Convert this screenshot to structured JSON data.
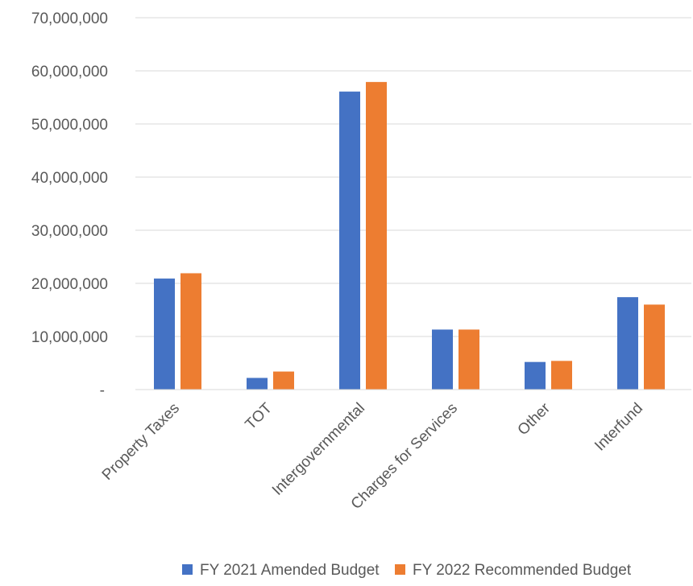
{
  "chart_data": {
    "type": "bar",
    "categories": [
      "Property Taxes",
      "TOT",
      "Intergovernmental",
      "Charges for Services",
      "Other",
      "Interfund"
    ],
    "series": [
      {
        "name": "FY 2021 Amended Budget",
        "color": "#4472C4",
        "values": [
          20900000,
          2200000,
          56100000,
          11300000,
          5200000,
          17400000
        ]
      },
      {
        "name": "FY 2022 Recommended Budget",
        "color": "#ED7D31",
        "values": [
          21900000,
          3400000,
          57900000,
          11300000,
          5400000,
          16000000
        ]
      }
    ],
    "yticks": [
      {
        "value": 0,
        "label": "-"
      },
      {
        "value": 10000000,
        "label": "10,000,000"
      },
      {
        "value": 20000000,
        "label": "20,000,000"
      },
      {
        "value": 30000000,
        "label": "30,000,000"
      },
      {
        "value": 40000000,
        "label": "40,000,000"
      },
      {
        "value": 50000000,
        "label": "50,000,000"
      },
      {
        "value": 60000000,
        "label": "60,000,000"
      },
      {
        "value": 70000000,
        "label": "70,000,000"
      }
    ],
    "ylim": [
      0,
      70000000
    ],
    "title": "",
    "xlabel": "",
    "ylabel": "",
    "grid": true,
    "legend_position": "bottom",
    "gridline_color": "#D9D9D9"
  }
}
